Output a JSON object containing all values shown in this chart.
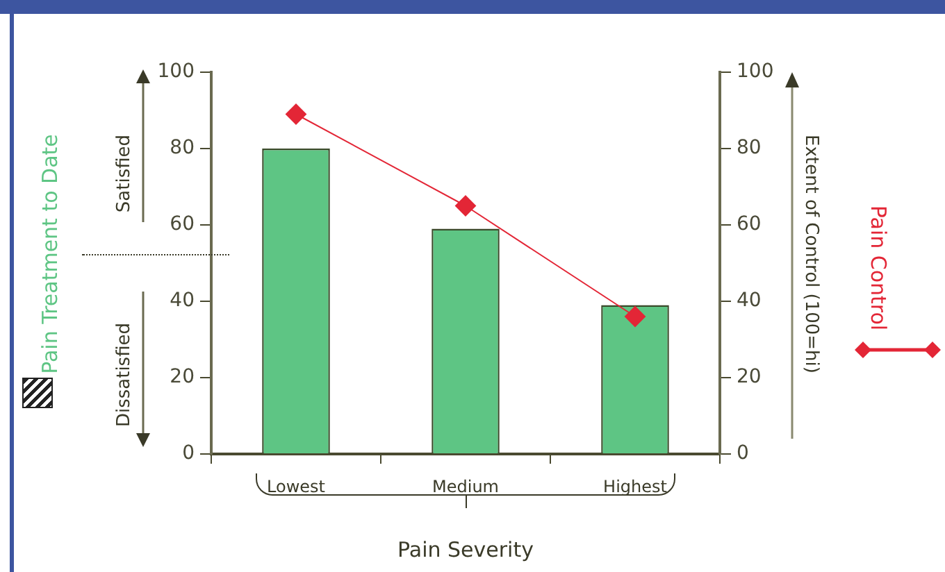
{
  "chart_data": {
    "type": "bar",
    "categories": [
      "Lowest",
      "Medium",
      "Highest"
    ],
    "series": [
      {
        "name": "Pain Treatment to Date",
        "color": "#5ec584",
        "values": [
          80,
          59,
          39
        ]
      },
      {
        "name": "Pain Control",
        "type": "line",
        "axis": "y2",
        "color": "#e32636",
        "values": [
          89,
          65,
          36
        ]
      }
    ],
    "xlabel": "Pain Severity",
    "y2label": "Extent of Control  (100=hi)",
    "annotations": [
      "Satisfied",
      "Dissatisfied"
    ],
    "ylim": [
      0,
      100
    ],
    "yticks": [
      0,
      20,
      40,
      60,
      80,
      100
    ],
    "y2lim": [
      0,
      100
    ],
    "y2ticks": [
      0,
      20,
      40,
      60,
      80,
      100
    ],
    "marker": "diamond",
    "legend": "left",
    "grid": false
  }
}
